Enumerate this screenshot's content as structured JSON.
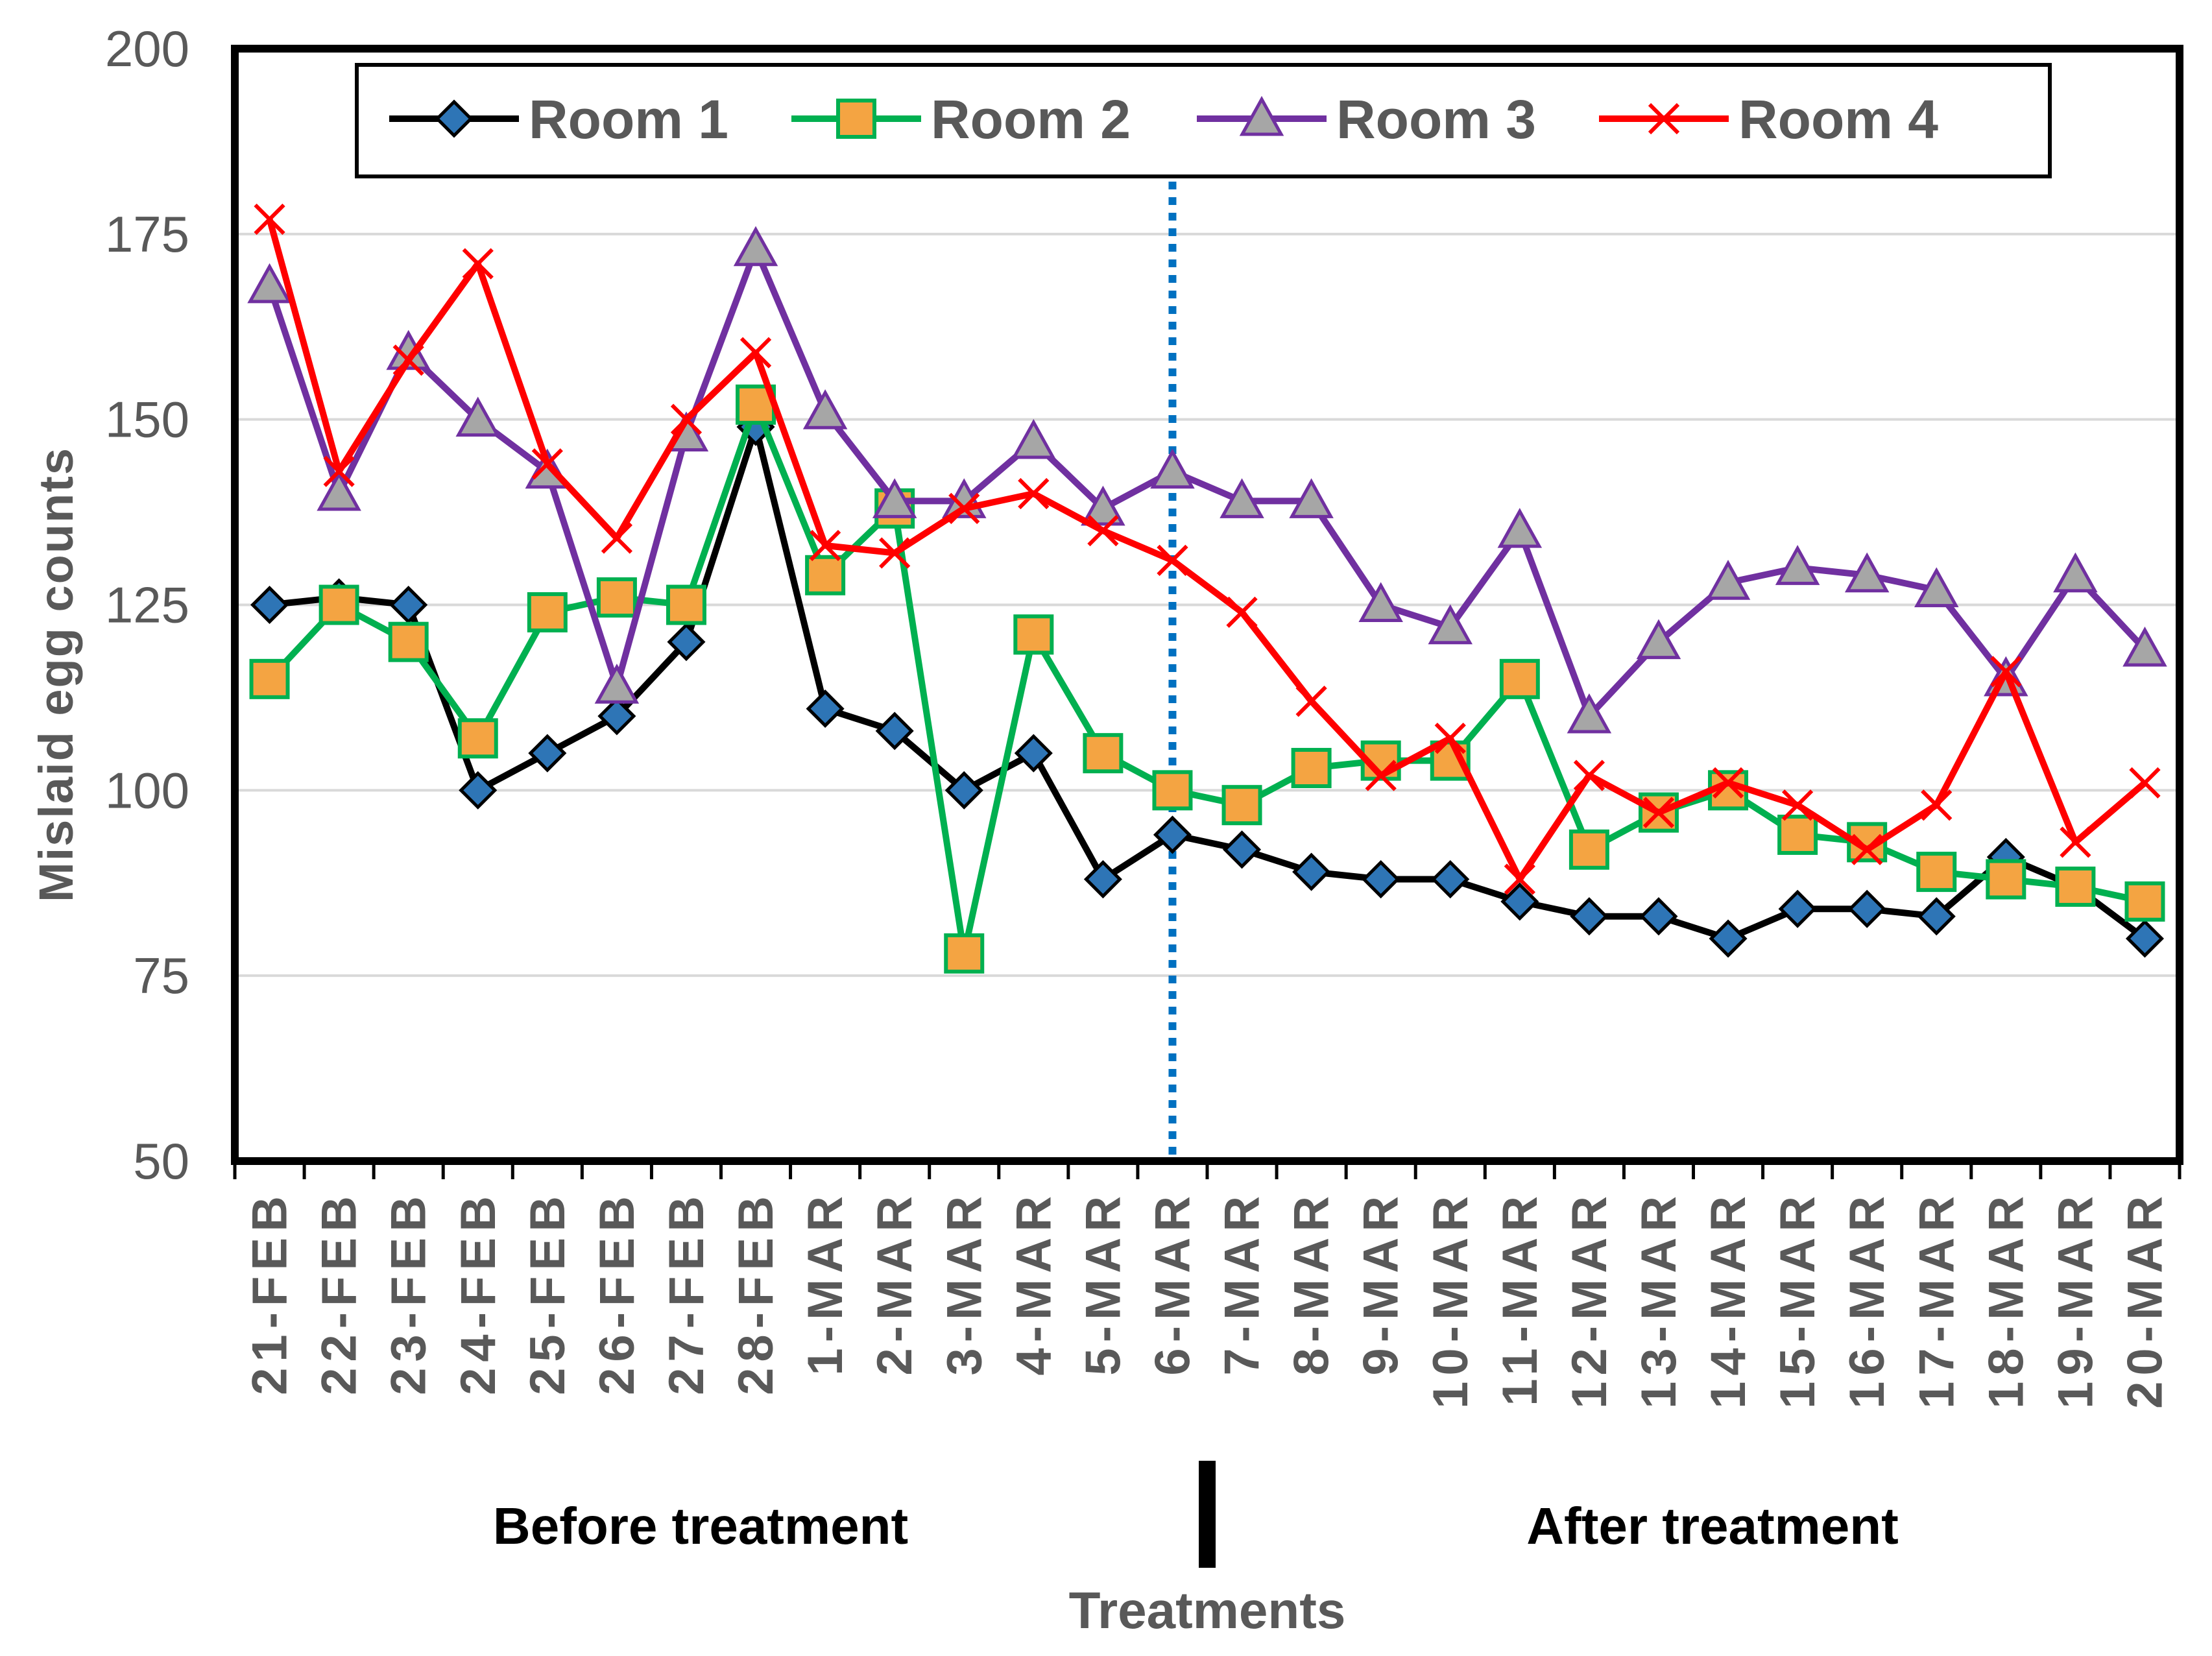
{
  "chart_data": {
    "type": "line",
    "title": "",
    "xlabel": "",
    "ylabel": "Mislaid egg counts",
    "ylim": [
      50,
      200
    ],
    "yticks": [
      50,
      75,
      100,
      125,
      150,
      175,
      200
    ],
    "grid": true,
    "legend_position": "top",
    "categories": [
      "21-FEB",
      "22-FEB",
      "23-FEB",
      "24-FEB",
      "25-FEB",
      "26-FEB",
      "27-FEB",
      "28-FEB",
      "1-MAR",
      "2-MAR",
      "3-MAR",
      "4-MAR",
      "5-MAR",
      "6-MAR",
      "7-MAR",
      "8-MAR",
      "9-MAR",
      "10-MAR",
      "11-MAR",
      "12-MAR",
      "13-MAR",
      "14-MAR",
      "15-MAR",
      "16-MAR",
      "17-MAR",
      "18-MAR",
      "19-MAR",
      "20-MAR"
    ],
    "series": [
      {
        "name": "Room 1",
        "color": "#000000",
        "marker": "diamond",
        "marker_fill": "#2E75B6",
        "values": [
          125,
          126,
          125,
          100,
          105,
          110,
          120,
          149,
          111,
          108,
          100,
          105,
          88,
          94,
          92,
          89,
          88,
          88,
          85,
          83,
          83,
          80,
          84,
          84,
          83,
          91,
          87,
          80
        ]
      },
      {
        "name": "Room 2",
        "color": "#00B050",
        "marker": "square",
        "marker_fill": "#F4A442",
        "values": [
          115,
          125,
          120,
          107,
          124,
          126,
          125,
          152,
          129,
          138,
          78,
          121,
          105,
          100,
          98,
          103,
          104,
          104,
          115,
          92,
          97,
          100,
          94,
          93,
          89,
          88,
          87,
          85
        ]
      },
      {
        "name": "Room 3",
        "color": "#7030A0",
        "marker": "triangle",
        "marker_fill": "#A6A6A6",
        "values": [
          168,
          140,
          159,
          150,
          143,
          114,
          148,
          173,
          151,
          139,
          139,
          147,
          138,
          143,
          139,
          139,
          125,
          122,
          135,
          110,
          120,
          128,
          130,
          129,
          127,
          115,
          129,
          119
        ]
      },
      {
        "name": "Room 4",
        "color": "#FF0000",
        "marker": "x",
        "marker_fill": "#FF0000",
        "values": [
          177,
          143,
          158,
          171,
          144,
          134,
          150,
          159,
          133,
          132,
          138,
          140,
          135,
          131,
          124,
          112,
          102,
          107,
          88,
          102,
          97,
          101,
          98,
          92,
          98,
          116,
          93,
          101
        ]
      }
    ],
    "annotations": {
      "before": "Before treatment",
      "after": "After treatment",
      "treatments": "Treatments",
      "divider_position": 13.5
    }
  }
}
